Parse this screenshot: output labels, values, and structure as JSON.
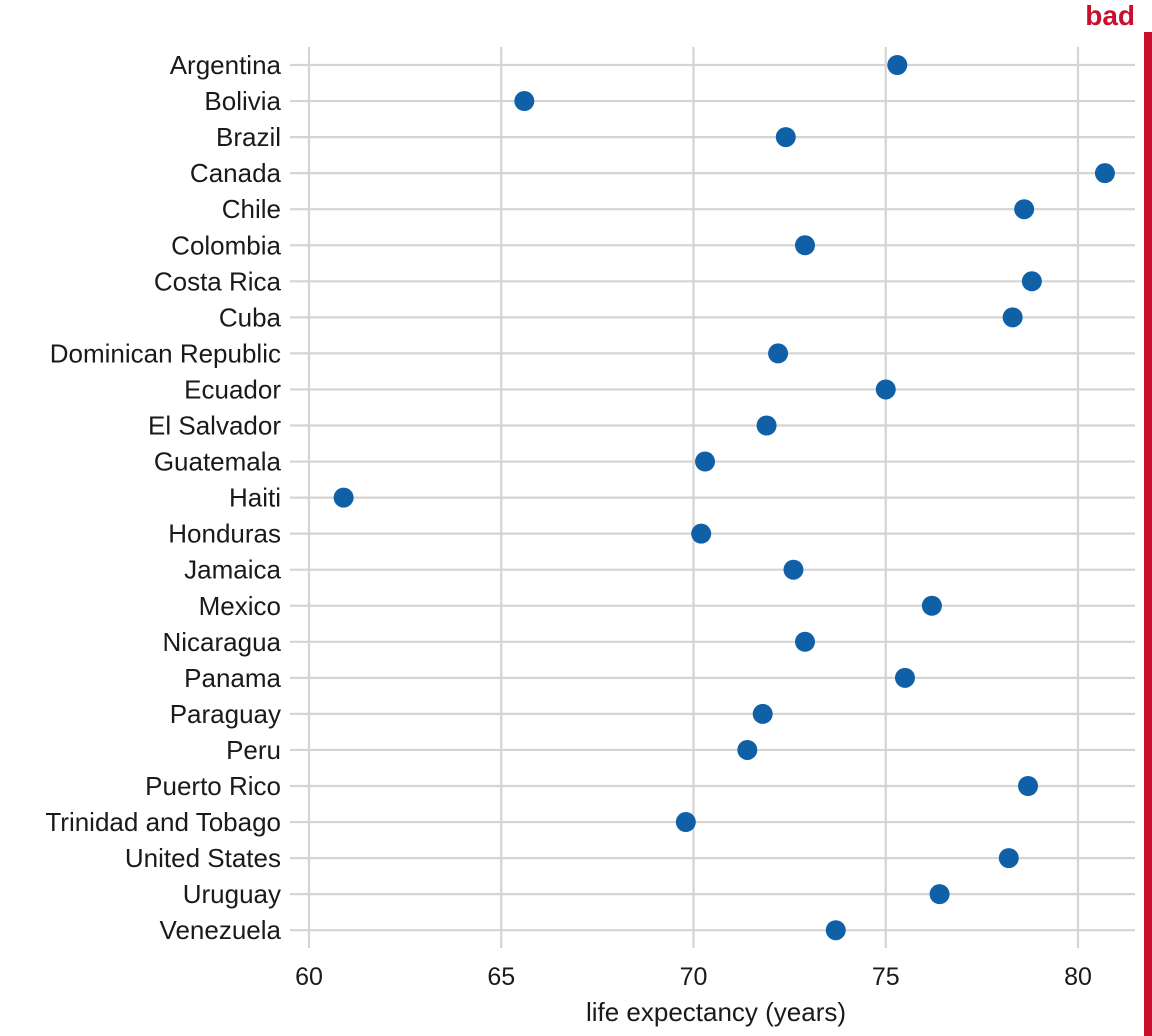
{
  "badge": {
    "label": "bad",
    "color": "#c8102e"
  },
  "colors": {
    "point": "#1060a8",
    "grid": "#d4d4d4",
    "text": "#1a1a1a"
  },
  "chart_data": {
    "type": "scatter",
    "title": "",
    "xlabel": "life expectancy (years)",
    "ylabel": "",
    "xlim": [
      60,
      81.5
    ],
    "xticks": [
      60,
      65,
      70,
      75,
      80
    ],
    "grid": true,
    "categories": [
      "Argentina",
      "Bolivia",
      "Brazil",
      "Canada",
      "Chile",
      "Colombia",
      "Costa Rica",
      "Cuba",
      "Dominican Republic",
      "Ecuador",
      "El Salvador",
      "Guatemala",
      "Haiti",
      "Honduras",
      "Jamaica",
      "Mexico",
      "Nicaragua",
      "Panama",
      "Paraguay",
      "Peru",
      "Puerto Rico",
      "Trinidad and Tobago",
      "United States",
      "Uruguay",
      "Venezuela"
    ],
    "values": [
      75.3,
      65.6,
      72.4,
      80.7,
      78.6,
      72.9,
      78.8,
      78.3,
      72.2,
      75.0,
      71.9,
      70.3,
      60.9,
      70.2,
      72.6,
      76.2,
      72.9,
      75.5,
      71.8,
      71.4,
      78.7,
      69.8,
      78.2,
      76.4,
      73.7
    ]
  }
}
